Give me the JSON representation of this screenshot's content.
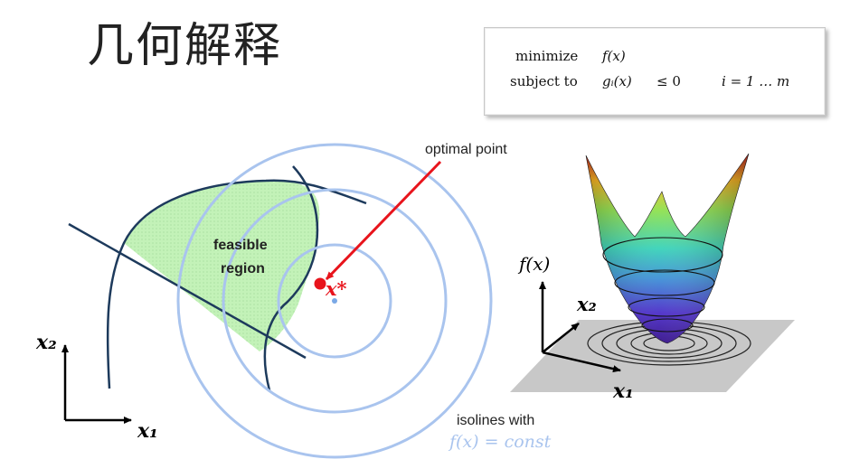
{
  "title": "几何解释",
  "problem": {
    "row1_keyword": "minimize",
    "row1_expr": "f(x)",
    "row2_keyword": "subject to",
    "row2_expr": "gᵢ(x)",
    "row2_relation": "≤ 0",
    "row2_index": "i = 1 … m"
  },
  "contour_diagram": {
    "feasible_label_line1": "feasible",
    "feasible_label_line2": "region",
    "optimum_symbol": "x*",
    "optimum_callout": "optimal point",
    "isolines_caption_line1": "isolines with",
    "isolines_caption_line2": "f(x) = const",
    "axis_x_label": "x₁",
    "axis_y_label": "x₂",
    "colors": {
      "feasible_fill": "#bff0b4",
      "constraint_curves": "#1d3a5c",
      "isolines": "#a9c4ee",
      "optimum": "#e8141c"
    }
  },
  "surface_plot": {
    "z_label": "f(x)",
    "y_label": "x₂",
    "x_label": "x₁"
  }
}
